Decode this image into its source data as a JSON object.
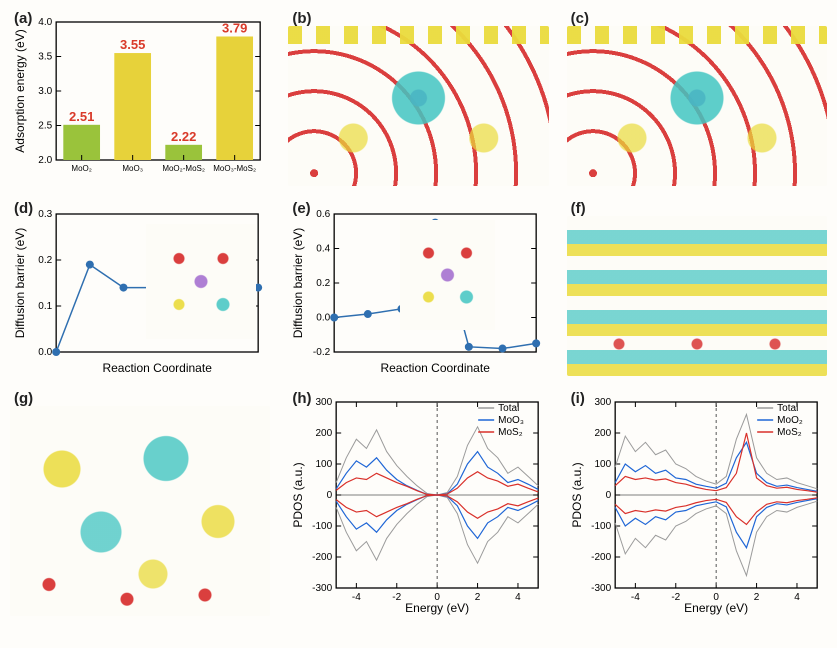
{
  "figure": {
    "panel_labels": [
      "(a)",
      "(b)",
      "(c)",
      "(d)",
      "(e)",
      "(f)",
      "(g)",
      "(h)",
      "(i)"
    ],
    "background_color": "#fefdfa",
    "panel_label_fontsize": 15,
    "panel_label_color": "#222222"
  },
  "panel_a": {
    "type": "bar",
    "categories": [
      "MoO₂",
      "MoO₃",
      "MoO₂-MoS₂",
      "MoO₃-MoS₂"
    ],
    "values": [
      2.51,
      3.55,
      2.22,
      3.79
    ],
    "value_labels": [
      "2.51",
      "3.55",
      "2.22",
      "3.79"
    ],
    "value_label_color": "#d93a2a",
    "value_label_fontsize": 13,
    "value_label_fontweight": "bold",
    "bar_colors": [
      "#9ac33b",
      "#e7d23a",
      "#9ac33b",
      "#e7d23a"
    ],
    "bar_width": 0.72,
    "ylabel": "Adsorption energy (eV)",
    "ylim": [
      2.0,
      4.0
    ],
    "yticks": [
      2.0,
      2.5,
      3.0,
      3.5,
      4.0
    ],
    "axis_color": "#000000",
    "tick_fontsize": 10,
    "label_fontsize": 12,
    "xtick_fontsize": 8,
    "background_color": "#fefdfa"
  },
  "panel_b": {
    "type": "dft-render",
    "description": "Charge density difference side view, MoS2 layer on top (yellow S, teal Mo), MoO3 ribbons below (teal Mo, red O), purple Li between, yellow=accumulation teal=depletion isosurfaces",
    "atom_colors": {
      "S": "#ead93c",
      "Mo": "#4fb9b4",
      "O": "#d22a2a",
      "Li": "#8a6cc9"
    },
    "iso_colors": {
      "accumulation": "#ead93c",
      "depletion": "#42c5c2"
    }
  },
  "panel_c": {
    "type": "dft-render",
    "description": "Similar charge density isosurface, tilted view, MoS2 top layer, oxide framework below with red O and teal Mo, larger yellow/teal lobes around interface"
  },
  "panel_d": {
    "type": "line",
    "xlabel": "Reaction Coordinate",
    "ylabel": "Diffusion barrier (eV)",
    "ylim": [
      0.0,
      0.3
    ],
    "yticks": [
      0.0,
      0.1,
      0.2,
      0.3
    ],
    "x_values": [
      0,
      1,
      2,
      3,
      4,
      5,
      6
    ],
    "y_values": [
      0.0,
      0.19,
      0.14,
      0.14,
      0.14,
      0.14,
      0.14
    ],
    "line_color": "#2f6fb0",
    "marker": "circle",
    "marker_size": 4,
    "line_width": 1.5,
    "axis_color": "#000000",
    "tick_fontsize": 10,
    "label_fontsize": 12,
    "inset": {
      "description": "atomic structure Li path in MoO2, red O, teal Mo, purple Li, yellow S",
      "position": "right"
    }
  },
  "panel_e": {
    "type": "line",
    "xlabel": "Reaction Coordinate",
    "ylabel": "Diffusion barrier (eV)",
    "ylim": [
      -0.2,
      0.6
    ],
    "yticks": [
      -0.2,
      0.0,
      0.2,
      0.4,
      0.6
    ],
    "x_values": [
      0,
      1,
      2,
      3,
      4,
      5,
      6
    ],
    "y_values": [
      0.0,
      0.02,
      0.05,
      0.55,
      -0.17,
      -0.18,
      -0.15
    ],
    "line_color": "#2f6fb0",
    "marker": "circle",
    "marker_size": 4,
    "line_width": 1.5,
    "axis_color": "#000000",
    "tick_fontsize": 10,
    "label_fontsize": 12,
    "inset": {
      "description": "atomic structure Li path in MoO3-MoS2, red O teal Mo purple Li yellow S",
      "position": "center-right"
    }
  },
  "panel_f": {
    "type": "dft-render",
    "description": "Layered charge density difference, horizontal MoS2 and MoO3 layers, alternating yellow/teal isosurface lobes between layers, red O rows at bottom"
  },
  "panel_g": {
    "type": "dft-render",
    "description": "Three-layer interface charge density, heavy yellow/teal lobes between top MoS2 and middle oxide, red-O oxide framework below"
  },
  "panel_h": {
    "type": "line",
    "xlabel": "Energy (eV)",
    "ylabel": "PDOS (a.u.)",
    "xlim": [
      -5,
      5
    ],
    "xticks": [
      -4,
      -2,
      0,
      2,
      4
    ],
    "ylim": [
      -300,
      300
    ],
    "yticks": [
      -300,
      -200,
      -100,
      0,
      100,
      200,
      300
    ],
    "fermi_line": {
      "x": 0,
      "style": "dashed",
      "color": "#555555"
    },
    "axis_color": "#000000",
    "tick_fontsize": 10,
    "label_fontsize": 12,
    "legend_position": "top-right",
    "legend_fontsize": 10,
    "series": [
      {
        "name": "Total",
        "color": "#9b9b9b",
        "line_width": 1,
        "x": [
          -5,
          -4.5,
          -4,
          -3.5,
          -3,
          -2.5,
          -2,
          -1.5,
          -1,
          -0.5,
          0,
          0.5,
          1,
          1.5,
          2,
          2.5,
          3,
          3.5,
          4,
          4.5,
          5
        ],
        "y_up": [
          40,
          120,
          180,
          150,
          210,
          140,
          95,
          60,
          30,
          5,
          0,
          8,
          60,
          160,
          220,
          150,
          120,
          70,
          90,
          60,
          30
        ],
        "y_dn": [
          -40,
          -120,
          -180,
          -150,
          -210,
          -140,
          -95,
          -60,
          -30,
          -5,
          0,
          -8,
          -60,
          -160,
          -220,
          -150,
          -120,
          -70,
          -90,
          -60,
          -30
        ]
      },
      {
        "name": "MoO₃",
        "color": "#1f66d6",
        "line_width": 1.2,
        "x": [
          -5,
          -4.5,
          -4,
          -3.5,
          -3,
          -2.5,
          -2,
          -1.5,
          -1,
          -0.5,
          0,
          0.5,
          1,
          1.5,
          2,
          2.5,
          3,
          3.5,
          4,
          4.5,
          5
        ],
        "y_up": [
          20,
          70,
          110,
          90,
          120,
          80,
          50,
          30,
          15,
          2,
          0,
          4,
          35,
          100,
          140,
          90,
          70,
          40,
          50,
          35,
          18
        ],
        "y_dn": [
          -20,
          -70,
          -110,
          -90,
          -120,
          -80,
          -50,
          -30,
          -15,
          -2,
          0,
          -4,
          -35,
          -100,
          -140,
          -90,
          -70,
          -40,
          -50,
          -35,
          -18
        ]
      },
      {
        "name": "MoS₂",
        "color": "#d9302a",
        "line_width": 1.2,
        "x": [
          -5,
          -4.5,
          -4,
          -3.5,
          -3,
          -2.5,
          -2,
          -1.5,
          -1,
          -0.5,
          0,
          0.5,
          1,
          1.5,
          2,
          2.5,
          3,
          3.5,
          4,
          4.5,
          5
        ],
        "y_up": [
          15,
          40,
          55,
          50,
          70,
          55,
          40,
          28,
          14,
          2,
          0,
          3,
          22,
          55,
          75,
          55,
          45,
          28,
          35,
          22,
          10
        ],
        "y_dn": [
          -15,
          -40,
          -55,
          -50,
          -70,
          -55,
          -40,
          -28,
          -14,
          -2,
          0,
          -3,
          -22,
          -55,
          -75,
          -55,
          -45,
          -28,
          -35,
          -22,
          -10
        ]
      }
    ]
  },
  "panel_i": {
    "type": "line",
    "xlabel": "Energy (eV)",
    "ylabel": "PDOS (a.u.)",
    "xlim": [
      -5,
      5
    ],
    "xticks": [
      -4,
      -2,
      0,
      2,
      4
    ],
    "ylim": [
      -300,
      300
    ],
    "yticks": [
      -300,
      -200,
      -100,
      0,
      100,
      200,
      300
    ],
    "fermi_line": {
      "x": 0,
      "style": "dashed",
      "color": "#555555"
    },
    "axis_color": "#000000",
    "tick_fontsize": 10,
    "label_fontsize": 12,
    "legend_position": "top-right",
    "legend_fontsize": 10,
    "series": [
      {
        "name": "Total",
        "color": "#9b9b9b",
        "line_width": 1,
        "x": [
          -5,
          -4.5,
          -4,
          -3.5,
          -3,
          -2.5,
          -2,
          -1.5,
          -1,
          -0.5,
          0,
          0.5,
          1,
          1.5,
          2,
          2.5,
          3,
          3.5,
          4,
          4.5,
          5
        ],
        "y_up": [
          90,
          190,
          140,
          170,
          130,
          145,
          100,
          85,
          60,
          45,
          35,
          60,
          180,
          260,
          120,
          70,
          50,
          55,
          40,
          30,
          20
        ],
        "y_dn": [
          -90,
          -190,
          -140,
          -170,
          -130,
          -145,
          -100,
          -85,
          -60,
          -45,
          -35,
          -60,
          -180,
          -260,
          -120,
          -70,
          -50,
          -55,
          -40,
          -30,
          -20
        ]
      },
      {
        "name": "MoO₂",
        "color": "#1f66d6",
        "line_width": 1.2,
        "x": [
          -5,
          -4.5,
          -4,
          -3.5,
          -3,
          -2.5,
          -2,
          -1.5,
          -1,
          -0.5,
          0,
          0.5,
          1,
          1.5,
          2,
          2.5,
          3,
          3.5,
          4,
          4.5,
          5
        ],
        "y_up": [
          40,
          100,
          75,
          95,
          70,
          80,
          55,
          50,
          35,
          28,
          22,
          38,
          120,
          170,
          70,
          40,
          28,
          32,
          24,
          18,
          12
        ],
        "y_dn": [
          -40,
          -100,
          -75,
          -95,
          -70,
          -80,
          -55,
          -50,
          -35,
          -28,
          -22,
          -38,
          -120,
          -170,
          -70,
          -40,
          -28,
          -32,
          -24,
          -18,
          -12
        ]
      },
      {
        "name": "MoS₂",
        "color": "#d9302a",
        "line_width": 1.2,
        "x": [
          -5,
          -4.5,
          -4,
          -3.5,
          -3,
          -2.5,
          -2,
          -1.5,
          -1,
          -0.5,
          0,
          0.5,
          1,
          1.5,
          2,
          2.5,
          3,
          3.5,
          4,
          4.5,
          5
        ],
        "y_up": [
          30,
          60,
          50,
          55,
          48,
          52,
          40,
          35,
          25,
          18,
          14,
          24,
          70,
          200,
          55,
          30,
          22,
          25,
          18,
          14,
          9
        ],
        "y_dn": [
          -30,
          -60,
          -50,
          -55,
          -48,
          -52,
          -40,
          -35,
          -25,
          -18,
          -14,
          -24,
          -70,
          -95,
          -55,
          -30,
          -22,
          -25,
          -18,
          -14,
          -9
        ]
      }
    ]
  }
}
